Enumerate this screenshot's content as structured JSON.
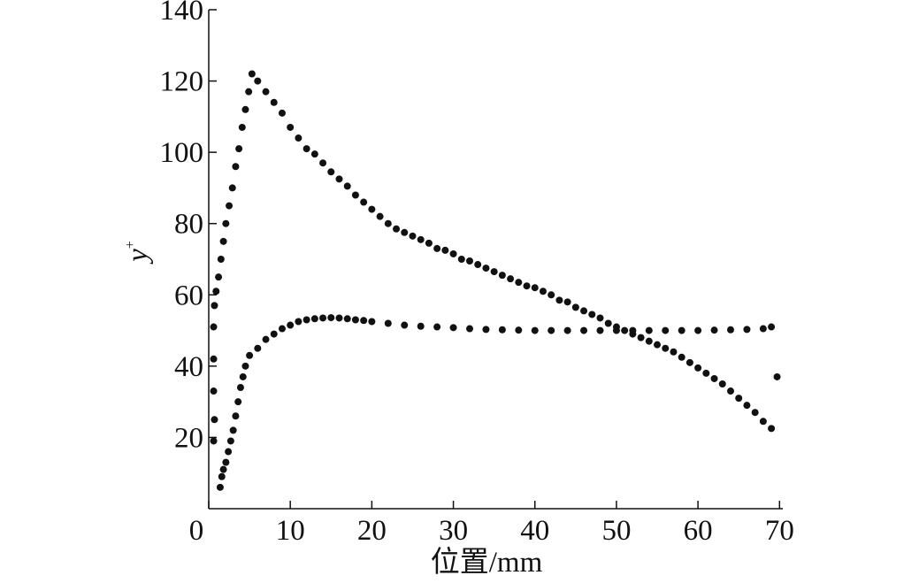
{
  "chart_data": {
    "type": "scatter",
    "xlabel": "位置/mm",
    "ylabel": {
      "text": "y",
      "sup": "+"
    },
    "xlim": [
      0,
      70.4
    ],
    "ylim": [
      0,
      140
    ],
    "xticks": [
      0,
      10,
      20,
      30,
      40,
      50,
      60,
      70
    ],
    "yticks": [
      20,
      40,
      60,
      80,
      100,
      120,
      140
    ],
    "series": [
      {
        "color": "#111111",
        "x": [
          0.6,
          0.7,
          0.6,
          0.6,
          0.6,
          0.7,
          0.9,
          1.2,
          1.5,
          1.8,
          2.1,
          2.5,
          2.9,
          3.3,
          3.7,
          4.1,
          4.5,
          4.9,
          5.3,
          6,
          7,
          8,
          9,
          10,
          11,
          12,
          13,
          14,
          15,
          16,
          17,
          18,
          19,
          20,
          21,
          22,
          23,
          24,
          25,
          26,
          27,
          28,
          29,
          30,
          31,
          32,
          33,
          34,
          35,
          36,
          37,
          38,
          39,
          40,
          41,
          42,
          43,
          44,
          45,
          46,
          47,
          48,
          49,
          50,
          51,
          52,
          53,
          54,
          55,
          56,
          57,
          58,
          59,
          60,
          61,
          62,
          63,
          64,
          65,
          66,
          67,
          68,
          69,
          69.7
        ],
        "values": [
          19,
          25,
          33,
          42,
          51,
          57,
          61,
          65,
          70,
          75,
          80,
          85,
          90,
          96,
          101,
          107,
          112,
          117,
          122,
          120,
          117,
          114,
          111,
          107,
          104,
          101,
          99.5,
          97,
          94.5,
          92.5,
          90.5,
          88,
          86,
          84,
          82,
          80,
          78.5,
          77.5,
          76.5,
          75.5,
          74.5,
          73,
          72.5,
          71.5,
          70,
          69.5,
          68.5,
          67.5,
          66.5,
          65.5,
          64.5,
          63.5,
          62.5,
          62,
          61,
          60,
          58.5,
          58,
          56.5,
          55.5,
          54.5,
          53.5,
          52,
          51,
          50,
          49,
          48,
          47,
          46,
          45,
          44,
          42.5,
          41,
          39.5,
          38,
          36.5,
          35,
          33,
          31,
          29,
          27,
          24.5,
          22.5,
          37
        ]
      },
      {
        "color": "#111111",
        "x": [
          1.4,
          1.6,
          1.8,
          2.1,
          2.4,
          2.7,
          3,
          3.3,
          3.6,
          3.9,
          4.2,
          4.5,
          5,
          6,
          7,
          8,
          9,
          10,
          11,
          12,
          13,
          14,
          15,
          16,
          17,
          18,
          19,
          20,
          22,
          24,
          26,
          28,
          30,
          32,
          34,
          36,
          38,
          40,
          42,
          44,
          46,
          48,
          50,
          52,
          54,
          56,
          58,
          60,
          62,
          64,
          66,
          68,
          69
        ],
        "values": [
          6,
          9,
          11,
          13,
          16,
          19,
          22,
          26,
          30,
          34,
          37,
          40,
          43,
          45,
          47.5,
          49,
          50.5,
          51.5,
          52.5,
          53,
          53.3,
          53.5,
          53.6,
          53.5,
          53.3,
          53,
          52.8,
          52.5,
          52,
          51.5,
          51.2,
          51,
          50.8,
          50.5,
          50.3,
          50.2,
          50.1,
          50,
          50,
          50,
          50,
          50,
          50,
          50,
          50,
          50,
          50,
          50,
          50.1,
          50.2,
          50.3,
          50.5,
          51
        ]
      }
    ]
  }
}
